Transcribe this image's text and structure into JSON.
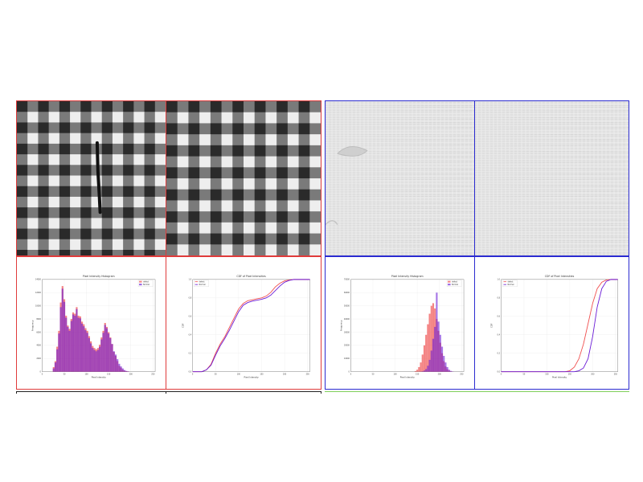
{
  "colors": {
    "left_group_border": "#e03b3b",
    "right_group_border": "#2b2bd0",
    "bottom_left_line": "#222222",
    "bottom_right_line": "#7fcf5a",
    "series_defect": "#f05050",
    "series_normal": "#6a1bd6",
    "overlap": "#8a3fb5"
  },
  "texture_panels": [
    {
      "name": "gingham-defect",
      "kind": "checker",
      "defect": true
    },
    {
      "name": "gingham-normal",
      "kind": "checker",
      "defect": false
    },
    {
      "name": "linen-defect",
      "kind": "linen",
      "defect": true
    },
    {
      "name": "linen-normal",
      "kind": "linen",
      "defect": false
    }
  ],
  "chart_data": [
    {
      "type": "bar",
      "title": "Pixel Intensity Histogram",
      "xlabel": "Pixel Intensity",
      "ylabel": "Frequency",
      "xlim": [
        0,
        255
      ],
      "ylim": [
        0,
        14000
      ],
      "xticks": [
        "0",
        "50",
        "100",
        "150",
        "200",
        "250"
      ],
      "yticks": [
        "0",
        "2000",
        "4000",
        "6000",
        "8000",
        "10000",
        "12000",
        "14000"
      ],
      "legend": {
        "position": "top-right",
        "entries": [
          "defect",
          "Normal"
        ]
      },
      "grid": true,
      "x": [
        26,
        30,
        34,
        38,
        42,
        46,
        50,
        54,
        58,
        62,
        66,
        70,
        74,
        78,
        82,
        86,
        90,
        94,
        98,
        102,
        106,
        110,
        114,
        118,
        122,
        126,
        130,
        134,
        138,
        142,
        146,
        150,
        154,
        158,
        162,
        166,
        170,
        174,
        178,
        182,
        186,
        190,
        194,
        198
      ],
      "series": [
        {
          "name": "defect",
          "values": [
            700,
            1600,
            3800,
            6200,
            10500,
            13000,
            11000,
            8500,
            7000,
            6500,
            8000,
            9000,
            8800,
            9800,
            8500,
            8400,
            7600,
            7200,
            6600,
            6200,
            5400,
            4600,
            3900,
            3600,
            3400,
            3600,
            4100,
            5200,
            6200,
            7400,
            6800,
            6000,
            5200,
            4200,
            3000,
            2400,
            1600,
            900,
            600,
            300,
            150,
            80,
            40,
            0
          ]
        },
        {
          "name": "Normal",
          "values": [
            500,
            1400,
            3400,
            5800,
            9800,
            12600,
            10600,
            8200,
            6800,
            6200,
            7700,
            8700,
            8500,
            9500,
            8200,
            8100,
            7300,
            6900,
            6300,
            5900,
            5100,
            4300,
            3600,
            3300,
            3100,
            3300,
            3800,
            4900,
            5900,
            7100,
            6600,
            5800,
            5100,
            4200,
            3100,
            2600,
            1900,
            1200,
            800,
            500,
            250,
            120,
            60,
            0
          ]
        }
      ]
    },
    {
      "type": "line",
      "title": "CDF of Pixel Intensities",
      "xlabel": "Pixel Intensity",
      "ylabel": "CDF",
      "xlim": [
        0,
        255
      ],
      "ylim": [
        0,
        1
      ],
      "xticks": [
        "0",
        "50",
        "100",
        "150",
        "200",
        "250"
      ],
      "yticks": [
        "0.0",
        "0.2",
        "0.4",
        "0.6",
        "0.8",
        "1.0"
      ],
      "legend": {
        "position": "top-left",
        "entries": [
          "defect",
          "Normal"
        ]
      },
      "grid": true,
      "x": [
        0,
        20,
        30,
        40,
        50,
        60,
        70,
        80,
        90,
        100,
        110,
        120,
        130,
        140,
        150,
        160,
        170,
        180,
        190,
        200,
        210,
        220,
        240,
        255
      ],
      "series": [
        {
          "name": "defect",
          "values": [
            0,
            0,
            0.02,
            0.08,
            0.2,
            0.3,
            0.38,
            0.48,
            0.58,
            0.68,
            0.74,
            0.77,
            0.78,
            0.79,
            0.8,
            0.82,
            0.86,
            0.92,
            0.96,
            0.985,
            0.995,
            1,
            1,
            1
          ]
        },
        {
          "name": "Normal",
          "values": [
            0,
            0,
            0.02,
            0.07,
            0.18,
            0.28,
            0.36,
            0.45,
            0.55,
            0.65,
            0.72,
            0.75,
            0.765,
            0.775,
            0.785,
            0.8,
            0.83,
            0.88,
            0.93,
            0.97,
            0.99,
            1,
            1,
            1
          ]
        }
      ]
    },
    {
      "type": "bar",
      "title": "Pixel Intensity Histogram",
      "xlabel": "Pixel Intensity",
      "ylabel": "Frequency",
      "xlim": [
        0,
        255
      ],
      "ylim": [
        0,
        70000
      ],
      "xticks": [
        "0",
        "50",
        "100",
        "150",
        "200",
        "250"
      ],
      "yticks": [
        "0",
        "10000",
        "20000",
        "30000",
        "40000",
        "50000",
        "60000",
        "70000"
      ],
      "legend": {
        "position": "top-right",
        "entries": [
          "defect",
          "Normal"
        ]
      },
      "grid": true,
      "x": [
        146,
        150,
        154,
        158,
        162,
        166,
        170,
        174,
        178,
        182,
        186,
        190,
        194,
        198,
        202,
        206,
        210,
        214,
        218,
        222,
        226,
        230,
        234
      ],
      "series": [
        {
          "name": "defect",
          "values": [
            500,
            1500,
            3500,
            7000,
            13000,
            20000,
            28000,
            36000,
            44000,
            50000,
            52000,
            48000,
            40000,
            31000,
            22000,
            14000,
            8000,
            4000,
            1800,
            700,
            200,
            50,
            0
          ]
        },
        {
          "name": "Normal",
          "values": [
            0,
            0,
            0,
            100,
            300,
            900,
            2000,
            4500,
            9000,
            16000,
            25000,
            34000,
            60000,
            38000,
            28000,
            19000,
            12000,
            7000,
            3500,
            1500,
            600,
            200,
            0
          ]
        }
      ]
    },
    {
      "type": "line",
      "title": "CDF of Pixel Intensities",
      "xlabel": "Pixel Intensity",
      "ylabel": "CDF",
      "xlim": [
        0,
        255
      ],
      "ylim": [
        0,
        1
      ],
      "xticks": [
        "0",
        "50",
        "100",
        "150",
        "200",
        "250"
      ],
      "yticks": [
        "0.0",
        "0.2",
        "0.4",
        "0.6",
        "0.8",
        "1.0"
      ],
      "legend": {
        "position": "top-left",
        "entries": [
          "defect",
          "Normal"
        ]
      },
      "grid": true,
      "x": [
        0,
        140,
        150,
        160,
        170,
        180,
        190,
        200,
        210,
        220,
        230,
        240,
        255
      ],
      "series": [
        {
          "name": "defect",
          "values": [
            0,
            0,
            0.01,
            0.05,
            0.14,
            0.3,
            0.52,
            0.74,
            0.9,
            0.97,
            0.995,
            1,
            1
          ]
        },
        {
          "name": "Normal",
          "values": [
            0,
            0,
            0,
            0,
            0.01,
            0.04,
            0.14,
            0.38,
            0.7,
            0.9,
            0.98,
            1,
            1
          ]
        }
      ]
    }
  ]
}
